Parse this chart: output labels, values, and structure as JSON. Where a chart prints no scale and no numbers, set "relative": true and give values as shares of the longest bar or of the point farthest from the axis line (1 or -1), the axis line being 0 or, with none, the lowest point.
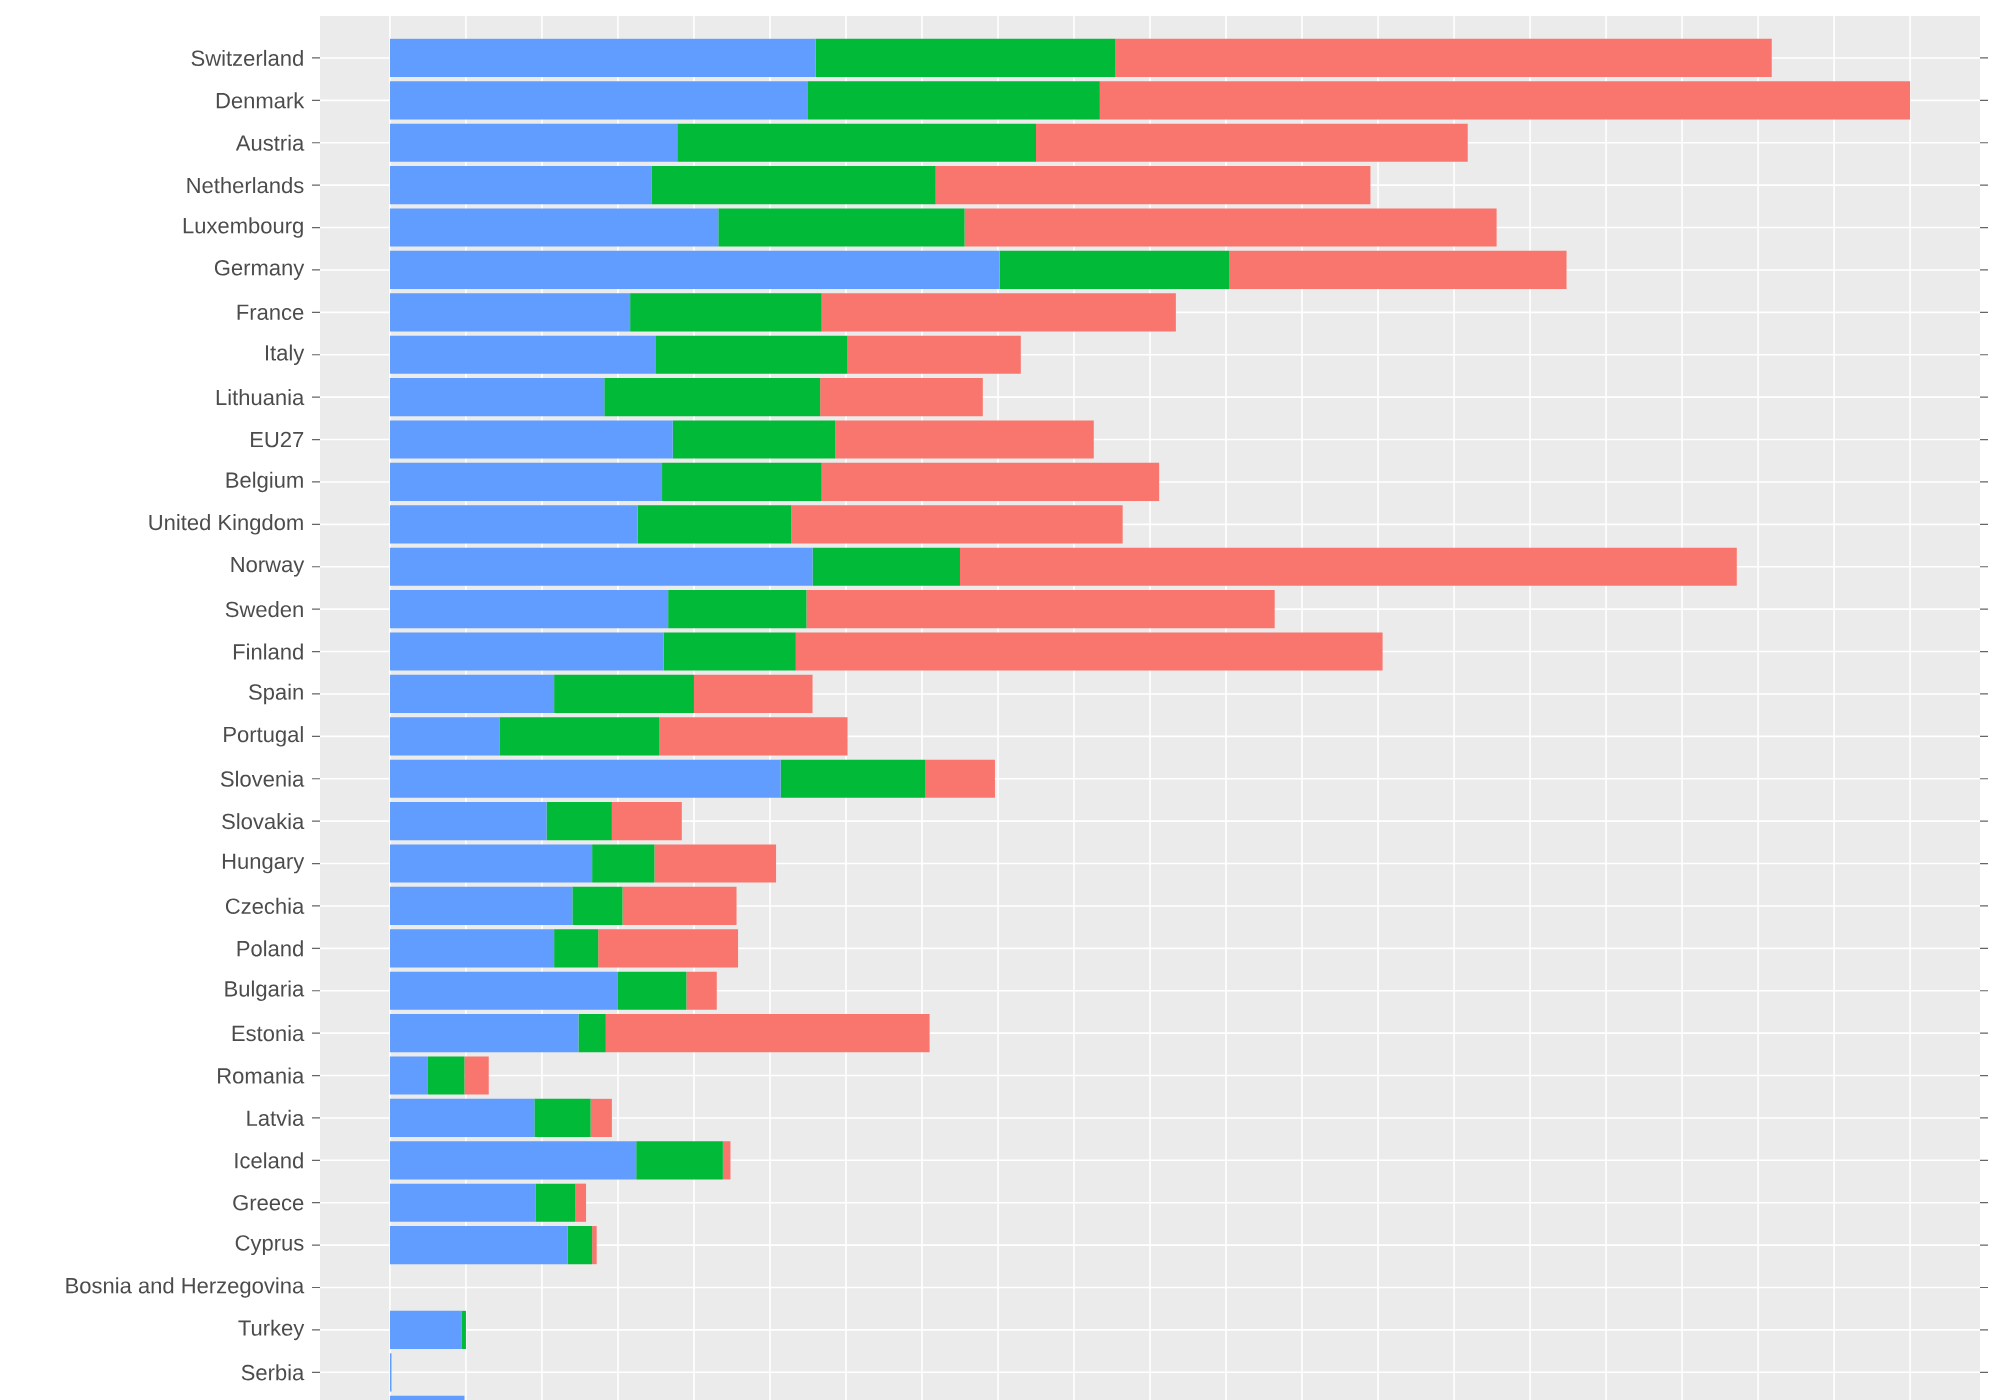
{
  "chart_data": {
    "type": "bar",
    "orientation": "horizontal",
    "stacked": true,
    "relative": true,
    "grid": true,
    "categories": [
      "Switzerland",
      "Denmark",
      "Austria",
      "Netherlands",
      "Luxembourg",
      "Germany",
      "France",
      "Italy",
      "Lithuania",
      "EU27",
      "Belgium",
      "United Kingdom",
      "Norway",
      "Sweden",
      "Finland",
      "Spain",
      "Portugal",
      "Slovenia",
      "Slovakia",
      "Hungary",
      "Czechia",
      "Poland",
      "Bulgaria",
      "Estonia",
      "Romania",
      "Latvia",
      "Iceland",
      "Greece",
      "Cyprus",
      "Bosnia and Herzegovina",
      "Turkey",
      "Serbia",
      null
    ],
    "series": [
      {
        "color": "#619cff",
        "values": [
          0.28,
          0.275,
          0.189,
          0.172,
          0.216,
          0.401,
          0.158,
          0.175,
          0.141,
          0.186,
          0.179,
          0.163,
          0.278,
          0.183,
          0.18,
          0.108,
          0.072,
          0.257,
          0.103,
          0.133,
          0.12,
          0.108,
          0.15,
          0.124,
          0.025,
          0.095,
          0.162,
          0.096,
          0.117,
          null,
          0.047,
          0.001,
          0.049
        ]
      },
      {
        "color": "#00ba38",
        "values": [
          0.197,
          0.192,
          0.236,
          0.187,
          0.162,
          0.151,
          0.126,
          0.126,
          0.142,
          0.107,
          0.105,
          0.101,
          0.097,
          0.091,
          0.087,
          0.092,
          0.105,
          0.095,
          0.043,
          0.041,
          0.033,
          0.029,
          0.045,
          0.018,
          0.024,
          0.037,
          0.057,
          0.026,
          0.016,
          null,
          0.003,
          0,
          0
        ]
      },
      {
        "color": "#f8766d",
        "values": [
          0.432,
          0.533,
          0.284,
          0.286,
          0.35,
          0.222,
          0.233,
          0.114,
          0.107,
          0.17,
          0.222,
          0.218,
          0.511,
          0.308,
          0.386,
          0.078,
          0.124,
          0.046,
          0.046,
          0.08,
          0.075,
          0.092,
          0.02,
          0.213,
          0.016,
          0.014,
          0.005,
          0.007,
          0.003,
          null,
          0,
          0,
          0
        ]
      }
    ]
  }
}
